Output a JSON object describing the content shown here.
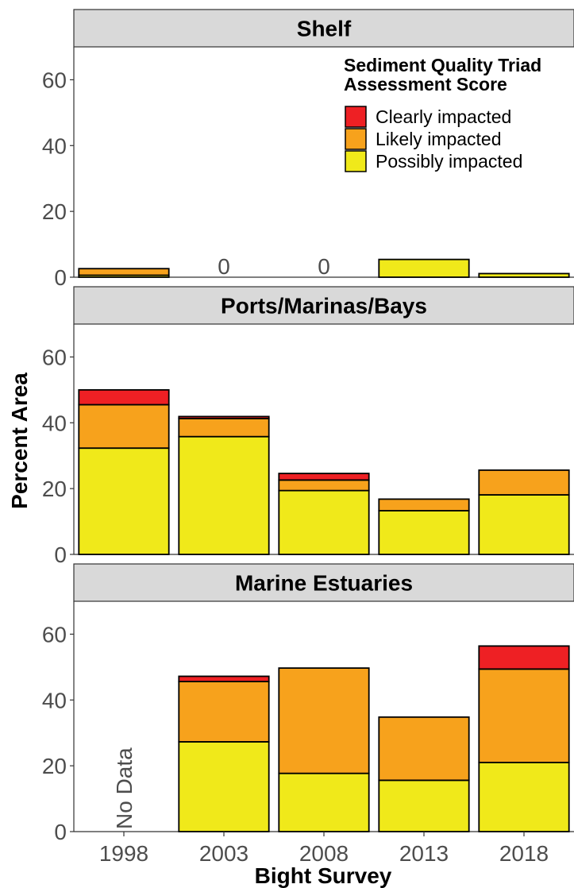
{
  "chart_data": {
    "type": "bar",
    "stacked": true,
    "xlabel": "Bight Survey",
    "ylabel": "Percent Area",
    "ylim": [
      0,
      70
    ],
    "yticks": [
      0,
      20,
      40,
      60
    ],
    "categories": [
      "1998",
      "2003",
      "2008",
      "2013",
      "2018"
    ],
    "legend": {
      "title_line1": "Sediment Quality Triad",
      "title_line2": "Assessment Score",
      "placement": "top-right of first panel",
      "entries": [
        {
          "key": "clearly",
          "label": "Clearly impacted",
          "color": "#ee2024"
        },
        {
          "key": "likely",
          "label": "Likely impacted",
          "color": "#f7a21c"
        },
        {
          "key": "possibly",
          "label": "Possibly impacted",
          "color": "#f0e91a"
        }
      ]
    },
    "stack_order": [
      "possibly",
      "likely",
      "clearly"
    ],
    "colors": {
      "possibly": "#f0e91a",
      "likely": "#f7a21c",
      "clearly": "#ee2024"
    },
    "panels": [
      {
        "title": "Shelf",
        "values": [
          {
            "possibly": 0.6,
            "likely": 2.0,
            "clearly": 0
          },
          null,
          null,
          {
            "possibly": 5.4,
            "likely": 0,
            "clearly": 0
          },
          {
            "possibly": 1.1,
            "likely": 0,
            "clearly": 0
          }
        ],
        "labels": {
          "1": "0",
          "2": "0"
        }
      },
      {
        "title": "Ports/Marinas/Bays",
        "values": [
          {
            "possibly": 32.3,
            "likely": 13.2,
            "clearly": 4.5
          },
          {
            "possibly": 35.8,
            "likely": 5.5,
            "clearly": 0.6
          },
          {
            "possibly": 19.4,
            "likely": 3.2,
            "clearly": 2.0
          },
          {
            "possibly": 13.3,
            "likely": 3.5,
            "clearly": 0
          },
          {
            "possibly": 18.1,
            "likely": 7.5,
            "clearly": 0
          }
        ],
        "labels": {}
      },
      {
        "title": "Marine Estuaries",
        "values": [
          null,
          {
            "possibly": 27.3,
            "likely": 18.3,
            "clearly": 1.6
          },
          {
            "possibly": 17.7,
            "likely": 32.0,
            "clearly": 0
          },
          {
            "possibly": 15.6,
            "likely": 19.2,
            "clearly": 0
          },
          {
            "possibly": 21.0,
            "likely": 28.4,
            "clearly": 7.0
          }
        ],
        "labels": {
          "0": "No Data"
        }
      }
    ]
  }
}
